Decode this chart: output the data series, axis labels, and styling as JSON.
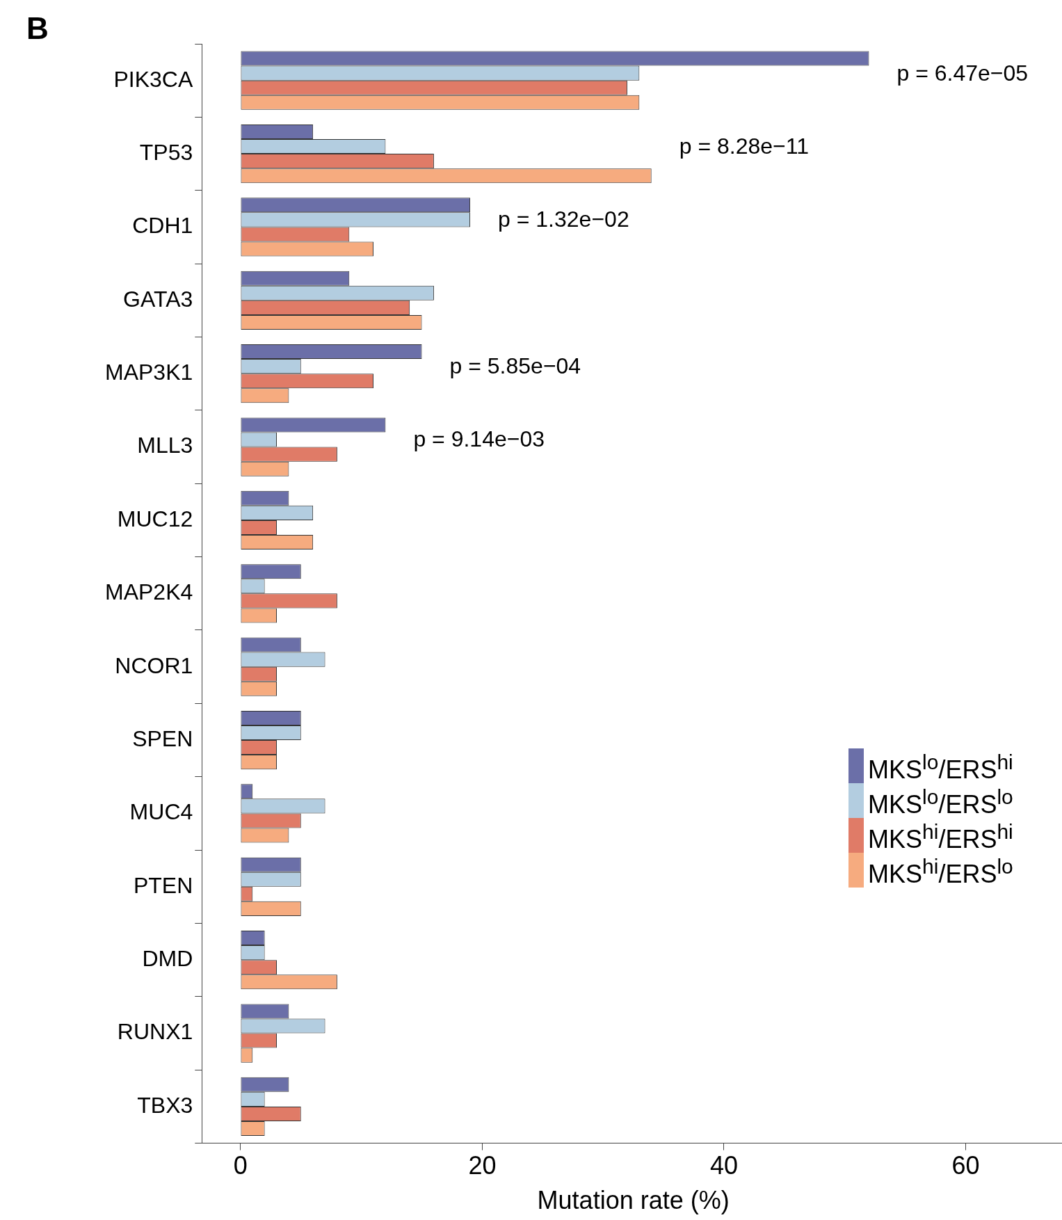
{
  "chart_data": {
    "type": "bar",
    "orientation": "horizontal",
    "xlabel": "Mutation rate (%)",
    "categories": [
      "PIK3CA",
      "TP53",
      "CDH1",
      "GATA3",
      "MAP3K1",
      "MLL3",
      "MUC12",
      "MAP2K4",
      "NCOR1",
      "SPEN",
      "MUC4",
      "PTEN",
      "DMD",
      "RUNX1",
      "TBX3"
    ],
    "series": [
      {
        "name": "MKS$^{lo}$/ERS$^{hi}$",
        "color": "#6b6fa8",
        "values": [
          52,
          6,
          19,
          9,
          15,
          12,
          4,
          5,
          5,
          5,
          1,
          5,
          2,
          4,
          4
        ]
      },
      {
        "name": "MKS$^{lo}$/ERS$^{lo}$",
        "color": "#b3cde0",
        "values": [
          33,
          12,
          19,
          16,
          5,
          3,
          6,
          2,
          7,
          5,
          7,
          5,
          2,
          7,
          2
        ]
      },
      {
        "name": "MKS$^{hi}$/ERS$^{hi}$",
        "color": "#e07b67",
        "values": [
          32,
          16,
          9,
          14,
          11,
          8,
          3,
          8,
          3,
          3,
          5,
          1,
          3,
          3,
          5
        ]
      },
      {
        "name": "MKS$^{hi}$/ERS$^{lo}$",
        "color": "#f6ab7f",
        "values": [
          33,
          34,
          11,
          15,
          4,
          4,
          6,
          3,
          3,
          3,
          4,
          5,
          8,
          1,
          2
        ]
      }
    ],
    "xlim": [
      -3.2,
      68.2
    ],
    "xticks": [
      0,
      20,
      40,
      60
    ],
    "grid": false,
    "legend": "right",
    "annotations": [
      "B",
      "p = 6.47e−05",
      "p = 8.28e−11",
      "p = 1.32e−02",
      "p = 5.85e−04",
      "p = 9.14e−03"
    ]
  }
}
